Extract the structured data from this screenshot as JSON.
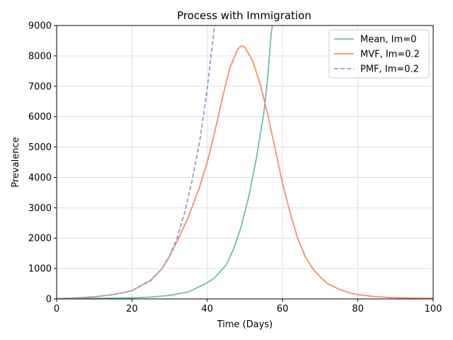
{
  "chart_data": {
    "type": "line",
    "title": "Process with Immigration",
    "xlabel": "Time (Days)",
    "ylabel": "Prevalence",
    "xlim": [
      0,
      100
    ],
    "ylim": [
      0,
      9000
    ],
    "x_ticks": [
      0,
      20,
      40,
      60,
      80,
      100
    ],
    "y_ticks": [
      0,
      1000,
      2000,
      3000,
      4000,
      5000,
      6000,
      7000,
      8000,
      9000
    ],
    "x_tick_labels": [
      "0",
      "20",
      "40",
      "60",
      "80",
      "100"
    ],
    "y_tick_labels": [
      "0",
      "1000",
      "2000",
      "3000",
      "4000",
      "5000",
      "6000",
      "7000",
      "8000",
      "9000"
    ],
    "grid": true,
    "legend_position": "top-right",
    "series": [
      {
        "name": "Mean, Im=0",
        "color": "#66c2a5",
        "dash": "solid",
        "points": [
          [
            0,
            10
          ],
          [
            10,
            20
          ],
          [
            20,
            35
          ],
          [
            25,
            60
          ],
          [
            30,
            115
          ],
          [
            35,
            230
          ],
          [
            40,
            530
          ],
          [
            42,
            700
          ],
          [
            45,
            1120
          ],
          [
            47,
            1640
          ],
          [
            49,
            2380
          ],
          [
            51,
            3350
          ],
          [
            53,
            4600
          ],
          [
            55,
            6100
          ],
          [
            56,
            7200
          ],
          [
            57,
            8750
          ],
          [
            57.3,
            9000
          ]
        ]
      },
      {
        "name": "MVF, Im=0.2",
        "color": "#fc8d62",
        "dash": "solid",
        "points": [
          [
            0,
            10
          ],
          [
            5,
            30
          ],
          [
            10,
            70
          ],
          [
            15,
            140
          ],
          [
            20,
            270
          ],
          [
            25,
            620
          ],
          [
            28,
            1000
          ],
          [
            30,
            1400
          ],
          [
            32,
            1900
          ],
          [
            35,
            2700
          ],
          [
            38,
            3700
          ],
          [
            40,
            4500
          ],
          [
            42,
            5500
          ],
          [
            44,
            6600
          ],
          [
            46,
            7600
          ],
          [
            48,
            8200
          ],
          [
            49,
            8330
          ],
          [
            50,
            8280
          ],
          [
            52,
            7850
          ],
          [
            54,
            7100
          ],
          [
            56,
            6100
          ],
          [
            58,
            4950
          ],
          [
            60,
            3800
          ],
          [
            62,
            2850
          ],
          [
            64,
            2000
          ],
          [
            66,
            1400
          ],
          [
            68,
            1000
          ],
          [
            70,
            720
          ],
          [
            72,
            500
          ],
          [
            75,
            320
          ],
          [
            78,
            190
          ],
          [
            80,
            140
          ],
          [
            85,
            70
          ],
          [
            90,
            40
          ],
          [
            95,
            25
          ],
          [
            100,
            20
          ]
        ]
      },
      {
        "name": "PMF, Im=0.2",
        "color": "#8da0cb",
        "dash": "dashed",
        "points": [
          [
            0,
            10
          ],
          [
            5,
            30
          ],
          [
            10,
            70
          ],
          [
            15,
            140
          ],
          [
            20,
            270
          ],
          [
            25,
            600
          ],
          [
            28,
            1000
          ],
          [
            30,
            1420
          ],
          [
            32,
            2000
          ],
          [
            34,
            2850
          ],
          [
            36,
            3900
          ],
          [
            38,
            5200
          ],
          [
            40,
            6900
          ],
          [
            41,
            8000
          ],
          [
            42,
            9000
          ]
        ]
      }
    ]
  }
}
